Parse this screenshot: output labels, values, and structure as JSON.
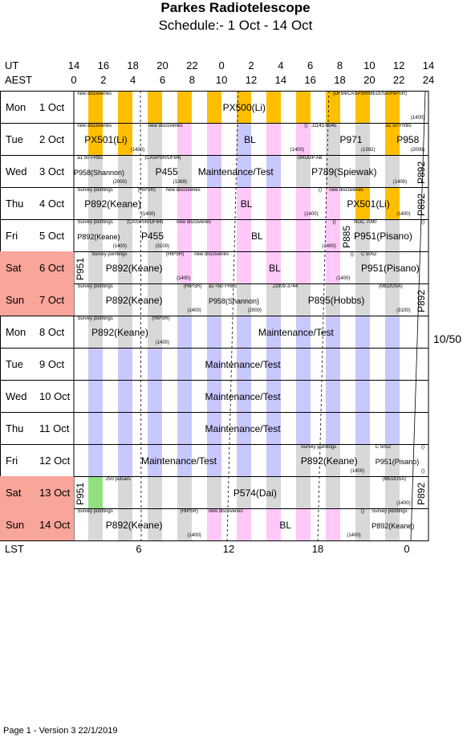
{
  "title": "Parkes Radiotelescope",
  "subtitle": "Schedule:- 1  Oct - 14 Oct",
  "axes": {
    "ut_label": "UT",
    "aest_label": "AEST",
    "ut_ticks": [
      "14",
      "16",
      "18",
      "20",
      "22",
      "0",
      "2",
      "4",
      "6",
      "8",
      "10",
      "12",
      "14"
    ],
    "aest_ticks": [
      "0",
      "2",
      "4",
      "6",
      "8",
      "10",
      "12",
      "14",
      "16",
      "18",
      "20",
      "22",
      "24"
    ],
    "lst_label": "LST",
    "lst_ticks": [
      "6",
      "12",
      "18",
      "0"
    ]
  },
  "colors": {
    "weekend": "#f8a59a",
    "orange": "#ffbf00",
    "pink": "#ffc8f8",
    "blue": "#c8c8ff",
    "gray": "#d8d8d8",
    "green": "#90e080"
  },
  "days": [
    {
      "day": "Mon",
      "date": "1 Oct",
      "weekend": false,
      "stripes": "orange",
      "notes": [
        {
          "t": "new discoveries",
          "x": 0.01
        },
        {
          "t": "(DF84/CASPSR/MEDUSA/HIPSR)",
          "x": 0.73
        }
      ],
      "projects": [
        {
          "t": "PX500(Li)",
          "x": 0.42
        }
      ],
      "hours": [
        {
          "t": "(1400)",
          "x": 0.95
        }
      ],
      "blocks": []
    },
    {
      "day": "Tue",
      "date": "2 Oct",
      "weekend": false,
      "stripes": "mixed",
      "notes": [
        {
          "t": "new discoveries",
          "x": 0.01
        },
        {
          "t": "new discoveries",
          "x": 0.21
        },
        {
          "t": "()",
          "x": 0.65
        },
        {
          "t": "J1141-6545",
          "x": 0.67
        },
        {
          "t": "a1  50  FRBs",
          "x": 0.88
        }
      ],
      "projects": [
        {
          "t": "PX501(Li)",
          "x": 0.03
        },
        {
          "t": "BL",
          "x": 0.48
        },
        {
          "t": "P971",
          "x": 0.75
        },
        {
          "t": "P958",
          "x": 0.91
        }
      ],
      "hours": [
        {
          "t": "(1400)",
          "x": 0.16
        },
        {
          "t": "(1400)",
          "x": 0.61
        },
        {
          "t": "(1392)",
          "x": 0.81
        },
        {
          "t": "(2000)",
          "x": 0.95
        }
      ],
      "blocks": []
    },
    {
      "day": "Wed",
      "date": "3 Oct",
      "weekend": false,
      "stripes": "mixed",
      "notes": [
        {
          "t": "a1  50  FRBs",
          "x": 0.01
        },
        {
          "t": "(CASPSR/DF84)",
          "x": 0.2
        },
        {
          "t": "GROUP AB",
          "x": 0.63
        }
      ],
      "projects": [
        {
          "t": "Maintenance/Test",
          "x": 0.35
        },
        {
          "t": "P789(Spiewak)",
          "x": 0.67
        }
      ],
      "projs": [
        {
          "t": "P958(Shannon)",
          "x": 0.0
        }
      ],
      "projm": [
        {
          "t": "P455",
          "x": 0.23
        }
      ],
      "hours": [
        {
          "t": "(2000)",
          "x": 0.11
        },
        {
          "t": "(1369)",
          "x": 0.28
        },
        {
          "t": "(1400)",
          "x": 0.9
        }
      ],
      "vert": [
        {
          "t": "P892",
          "x": 0.97
        }
      ],
      "blocks": []
    },
    {
      "day": "Thu",
      "date": "4 Oct",
      "weekend": false,
      "stripes": "mixed",
      "notes": [
        {
          "t": "Survey pointings",
          "x": 0.01
        },
        {
          "t": "(HIPSR)",
          "x": 0.18
        },
        {
          "t": "new discoveries",
          "x": 0.26
        },
        {
          "t": "()",
          "x": 0.69
        },
        {
          "t": "new discoveries",
          "x": 0.72
        }
      ],
      "projects": [
        {
          "t": "P892(Keane)",
          "x": 0.03
        },
        {
          "t": "BL",
          "x": 0.47
        },
        {
          "t": "PX501(Li)",
          "x": 0.77
        }
      ],
      "hours": [
        {
          "t": "(1400)",
          "x": 0.19
        },
        {
          "t": "(1400)",
          "x": 0.65
        },
        {
          "t": "(1400)",
          "x": 0.91
        }
      ],
      "vert": [
        {
          "t": "P892",
          "x": 0.97
        }
      ],
      "blocks": []
    },
    {
      "day": "Fri",
      "date": "5 Oct",
      "weekend": false,
      "stripes": "mixed",
      "notes": [
        {
          "t": "Survey pointings",
          "x": 0.01
        },
        {
          "t": "(CASPSR/DF84)",
          "x": 0.15
        },
        {
          "t": "new discoveries",
          "x": 0.29
        },
        {
          "t": "()",
          "x": 0.73
        },
        {
          "t": "NGC 7090",
          "x": 0.79
        },
        {
          "t": "()",
          "x": 0.98
        }
      ],
      "projects": [
        {
          "t": "P455",
          "x": 0.19
        },
        {
          "t": "BL",
          "x": 0.5
        },
        {
          "t": "P951(Pisano)",
          "x": 0.79
        }
      ],
      "projs": [
        {
          "t": "P892(Keane)",
          "x": 0.01
        }
      ],
      "hours": [
        {
          "t": "(1400)",
          "x": 0.11
        },
        {
          "t": "(3100)",
          "x": 0.23
        },
        {
          "t": "(1400)",
          "x": 0.7
        }
      ],
      "vert": [
        {
          "t": "P885",
          "x": 0.76
        }
      ],
      "blocks": []
    },
    {
      "day": "Sat",
      "date": "6 Oct",
      "weekend": true,
      "stripes": "mixed",
      "notes": [
        {
          "t": "Survey pointings",
          "x": 0.05
        },
        {
          "t": "(HIPSR)",
          "x": 0.26
        },
        {
          "t": "new discoveries",
          "x": 0.34
        },
        {
          "t": "()",
          "x": 0.78
        },
        {
          "t": "C 5052",
          "x": 0.81
        }
      ],
      "projects": [
        {
          "t": "P892(Keane)",
          "x": 0.09
        },
        {
          "t": "BL",
          "x": 0.55
        },
        {
          "t": "P951(Pisano)",
          "x": 0.81
        }
      ],
      "hours": [
        {
          "t": "(1400)",
          "x": 0.29
        },
        {
          "t": "(1400)",
          "x": 0.74
        }
      ],
      "vert": [
        {
          "t": "P951",
          "x": 0.01
        }
      ],
      "blocks": []
    },
    {
      "day": "Sun",
      "date": "7 Oct",
      "weekend": true,
      "stripes": "mixed",
      "notes": [
        {
          "t": "Survey pointings",
          "x": 0.01
        },
        {
          "t": "(HIPSR)",
          "x": 0.31
        },
        {
          "t": "a1  <50  FRBs",
          "x": 0.38
        },
        {
          "t": "J1909-3744",
          "x": 0.56
        },
        {
          "t": "(MEDUSA)",
          "x": 0.86
        }
      ],
      "projects": [
        {
          "t": "P892(Keane)",
          "x": 0.09
        },
        {
          "t": "P895(Hobbs)",
          "x": 0.66
        }
      ],
      "projs": [
        {
          "t": "P958(Shannon)",
          "x": 0.38
        }
      ],
      "hours": [
        {
          "t": "(1400)",
          "x": 0.32
        },
        {
          "t": "(2000)",
          "x": 0.49
        },
        {
          "t": "(3100)",
          "x": 0.91
        }
      ],
      "vert": [
        {
          "t": "P892",
          "x": 0.97
        }
      ],
      "blocks": []
    },
    {
      "day": "Mon",
      "date": "8 Oct",
      "weekend": false,
      "stripes": "mixed",
      "notes": [
        {
          "t": "Survey pointings",
          "x": 0.01
        },
        {
          "t": "(HIPSR)",
          "x": 0.22
        }
      ],
      "projects": [
        {
          "t": "P892(Keane)",
          "x": 0.05
        },
        {
          "t": "Maintenance/Test",
          "x": 0.52
        }
      ],
      "hours": [
        {
          "t": "(1400)",
          "x": 0.23
        }
      ],
      "blocks": []
    },
    {
      "day": "Tue",
      "date": "9 Oct",
      "weekend": false,
      "stripes": "blue",
      "notes": [],
      "projects": [
        {
          "t": "Maintenance/Test",
          "x": 0.37
        }
      ],
      "hours": [],
      "blocks": []
    },
    {
      "day": "Wed",
      "date": "10 Oct",
      "weekend": false,
      "stripes": "blue",
      "notes": [],
      "projects": [
        {
          "t": "Maintenance/Test",
          "x": 0.37
        }
      ],
      "hours": [],
      "blocks": []
    },
    {
      "day": "Thu",
      "date": "11 Oct",
      "weekend": false,
      "stripes": "blue",
      "notes": [],
      "projects": [
        {
          "t": "Maintenance/Test",
          "x": 0.37
        }
      ],
      "hours": [],
      "blocks": []
    },
    {
      "day": "Fri",
      "date": "12 Oct",
      "weekend": false,
      "stripes": "mixed",
      "notes": [
        {
          "t": "Survey pointings",
          "x": 0.64
        },
        {
          "t": "C 5052",
          "x": 0.85
        },
        {
          "t": "()",
          "x": 0.98
        }
      ],
      "projects": [
        {
          "t": "Maintenance/Test",
          "x": 0.19
        },
        {
          "t": "P892(Keane)",
          "x": 0.64
        }
      ],
      "projs": [
        {
          "t": "P951(Pisano)",
          "x": 0.85
        }
      ],
      "hours": [
        {
          "t": "(1400)",
          "x": 0.78
        },
        {
          "t": "()",
          "x": 0.98
        }
      ],
      "blocks": []
    },
    {
      "day": "Sat",
      "date": "13 Oct",
      "weekend": true,
      "stripes": "mixed",
      "notes": [
        {
          "t": "250 pulsars",
          "x": 0.09
        },
        {
          "t": "(MEDUSA)",
          "x": 0.87
        }
      ],
      "projects": [
        {
          "t": "P574(Dai)",
          "x": 0.45
        }
      ],
      "hours": [
        {
          "t": "(1400)",
          "x": 0.91
        }
      ],
      "vert": [
        {
          "t": "P951",
          "x": 0.01
        },
        {
          "t": "P892",
          "x": 0.97
        }
      ],
      "blocks": []
    },
    {
      "day": "Sun",
      "date": "14 Oct",
      "weekend": true,
      "stripes": "mixed",
      "notes": [
        {
          "t": "Survey pointings",
          "x": 0.01
        },
        {
          "t": "(HIPSR)",
          "x": 0.3
        },
        {
          "t": "new discoveries",
          "x": 0.38
        },
        {
          "t": "()",
          "x": 0.81
        },
        {
          "t": "Survey pointings",
          "x": 0.84
        }
      ],
      "projects": [
        {
          "t": "P892(Keane)",
          "x": 0.09
        },
        {
          "t": "BL",
          "x": 0.58
        }
      ],
      "projs": [
        {
          "t": "P892(Keane)",
          "x": 0.84
        }
      ],
      "hours": [
        {
          "t": "(1400)",
          "x": 0.32
        },
        {
          "t": "(1400)",
          "x": 0.77
        }
      ],
      "blocks": []
    }
  ],
  "ratio": "10/50",
  "footer": "Page 1 - Version 3  22/1/2019"
}
